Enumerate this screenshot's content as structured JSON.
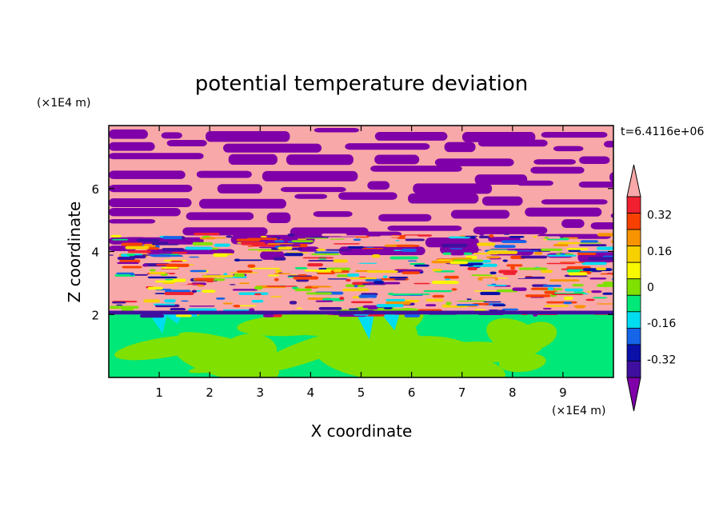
{
  "chart_data": {
    "type": "heatmap",
    "title": "potential temperature deviation",
    "xlabel": "X coordinate",
    "ylabel": "Z coordinate",
    "x_unit": "(×1E4 m)",
    "y_unit": "(×1E4 m)",
    "time_label": "t=6.4116e+06",
    "xlim": [
      0,
      10
    ],
    "ylim": [
      0,
      8
    ],
    "x_ticks": [
      1,
      2,
      3,
      4,
      5,
      6,
      7,
      8,
      9
    ],
    "y_ticks": [
      2,
      4,
      6
    ],
    "colorbar": {
      "levels": [
        -0.48,
        -0.4,
        -0.32,
        -0.24,
        -0.16,
        -0.08,
        0,
        0.08,
        0.16,
        0.24,
        0.32,
        0.4,
        0.48
      ],
      "tick_labels": [
        "0.32",
        "0.16",
        "0",
        "-0.16",
        "-0.32"
      ],
      "tick_values": [
        0.32,
        0.16,
        0,
        -0.16,
        -0.32
      ],
      "colors": [
        "#7f00a8",
        "#3f10a0",
        "#0a10a8",
        "#1565e8",
        "#00ddf0",
        "#00e878",
        "#80e000",
        "#f8f800",
        "#f8d200",
        "#f89400",
        "#f84000",
        "#f02030",
        "#f8a8a8"
      ]
    },
    "layers": [
      {
        "z_range": [
          0,
          2
        ],
        "description_value": "near 0 (green mix)"
      },
      {
        "z_range": [
          2,
          4.5
        ],
        "description_value": "mixed layer, values -0.48 to 0.48"
      },
      {
        "z_range": [
          4.5,
          8
        ],
        "description_value": "alternating bands of -0.48 and 0.48"
      }
    ]
  },
  "colors": {
    "axis": "#000000",
    "background": "#ffffff"
  }
}
